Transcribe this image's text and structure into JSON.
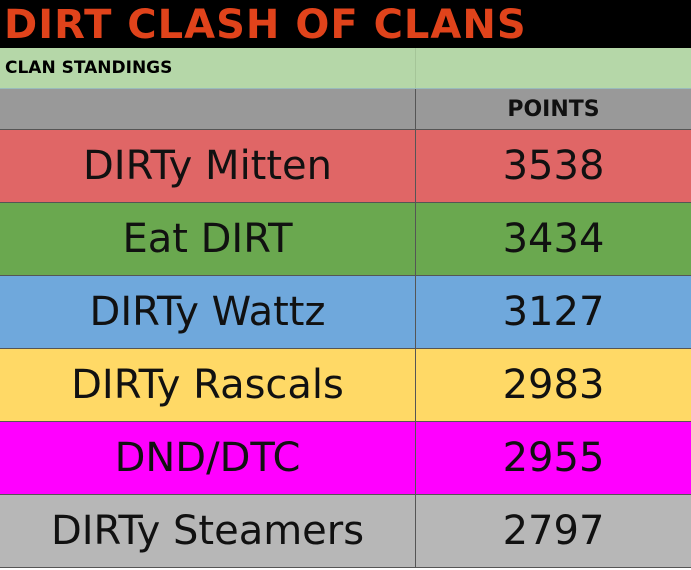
{
  "title": "DIRT CLASH OF CLANS",
  "subtitle": "CLAN STANDINGS",
  "header": {
    "points": "POINTS"
  },
  "rows": [
    {
      "name": "DIRTy Mitten",
      "points": "3538",
      "color": "#e06666"
    },
    {
      "name": "Eat DIRT",
      "points": "3434",
      "color": "#6aa84f"
    },
    {
      "name": "DIRTy Wattz",
      "points": "3127",
      "color": "#6fa8dc"
    },
    {
      "name": "DIRTy Rascals",
      "points": "2983",
      "color": "#ffd966"
    },
    {
      "name": "DND/DTC",
      "points": "2955",
      "color": "#ff00ff"
    },
    {
      "name": "DIRTy Steamers",
      "points": "2797",
      "color": "#b7b7b7"
    }
  ]
}
